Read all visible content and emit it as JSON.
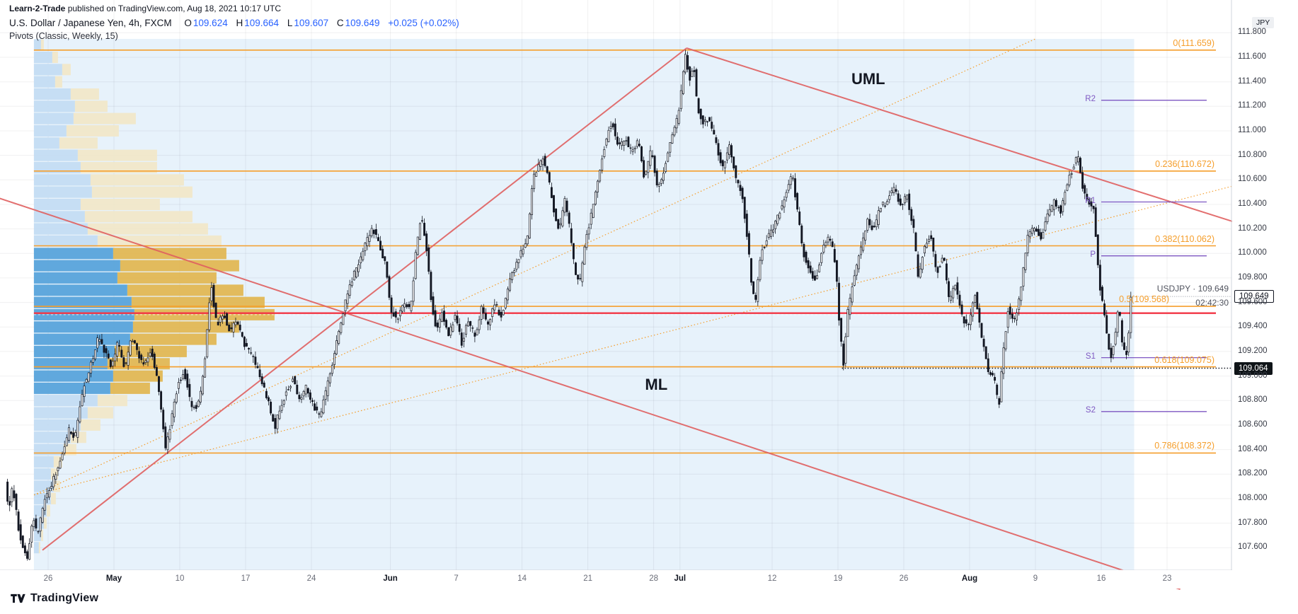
{
  "publish": {
    "author": "Learn-2-Trade",
    "rest": " published on TradingView.com, Aug 18, 2021 10:17 UTC"
  },
  "legend": {
    "symbol_title": "U.S. Dollar / Japanese Yen, 4h, FXCM",
    "ohlc": {
      "o_label": "O",
      "o": "109.624",
      "h_label": "H",
      "h": "109.664",
      "l_label": "L",
      "l": "109.607",
      "c_label": "C",
      "c": "109.649",
      "change": "+0.025 (+0.02%)"
    },
    "indicator": "Pivots (Classic, Weekly, 15)"
  },
  "price_label": {
    "symbol": "USDJPY",
    "separator": "·",
    "price": "109.649",
    "countdown": "02:42:30"
  },
  "axis": {
    "currency": "JPY",
    "black_tag": "109.064",
    "current_tag": "109.649",
    "price_ticks": [
      "111.800",
      "111.600",
      "111.400",
      "111.200",
      "111.000",
      "110.800",
      "110.600",
      "110.400",
      "110.200",
      "110.000",
      "109.800",
      "109.600",
      "109.400",
      "109.200",
      "109.000",
      "108.800",
      "108.600",
      "108.400",
      "108.200",
      "108.000",
      "107.800",
      "107.600"
    ],
    "time_ticks": [
      {
        "label": "26",
        "td": 0,
        "month": false
      },
      {
        "label": "May",
        "td": 5,
        "month": true
      },
      {
        "label": "10",
        "td": 10,
        "month": false
      },
      {
        "label": "17",
        "td": 15,
        "month": false
      },
      {
        "label": "24",
        "td": 20,
        "month": false
      },
      {
        "label": "Jun",
        "td": 26,
        "month": true
      },
      {
        "label": "7",
        "td": 31,
        "month": false
      },
      {
        "label": "14",
        "td": 36,
        "month": false
      },
      {
        "label": "21",
        "td": 41,
        "month": false
      },
      {
        "label": "28",
        "td": 46,
        "month": false
      },
      {
        "label": "Jul",
        "td": 48,
        "month": true
      },
      {
        "label": "12",
        "td": 55,
        "month": false
      },
      {
        "label": "19",
        "td": 60,
        "month": false
      },
      {
        "label": "26",
        "td": 65,
        "month": false
      },
      {
        "label": "Aug",
        "td": 70,
        "month": true
      },
      {
        "label": "9",
        "td": 75,
        "month": false
      },
      {
        "label": "16",
        "td": 80,
        "month": false
      },
      {
        "label": "23",
        "td": 85,
        "month": false
      }
    ]
  },
  "footer": {
    "brand": "TradingView"
  },
  "colors": {
    "up": "#ffffff",
    "down": "#131722",
    "wick": "#131722",
    "fib": "#F59E2B",
    "red_line": "#F23645",
    "pitchfork": "#E06060",
    "pivot": "#7E57C2",
    "profile_blue": "#C3DCF3",
    "profile_blue_va": "#55A2DA",
    "profile_tan": "#F2E7C8",
    "profile_tan_va": "#E2B64F",
    "range_bg": "rgba(144,198,237,0.22)",
    "grid": "rgba(42,46,57,0.07)",
    "legend_value": "#2962FF"
  },
  "chart_data": {
    "type": "candlestick",
    "symbol": "USDJPY",
    "title": "U.S. Dollar / Japanese Yen",
    "interval": "4h",
    "exchange": "FXCM",
    "current_price": 109.649,
    "ohlc_last": {
      "o": 109.624,
      "h": 109.664,
      "l": 109.607,
      "c": 109.649,
      "change": "+0.025 (+0.02%)"
    },
    "price_axis_range": [
      107.42,
      111.75
    ],
    "time_axis": "trading days from Apr 26 2021 (td 0) to Aug 23 2021 (td 85), weekends skipped",
    "t_start": -3.17,
    "t_end": 82.33,
    "range_highlight": {
      "td_start": -1.08,
      "td_end": 82.5
    },
    "fib_levels": [
      {
        "label": "0(111.659)",
        "price": 111.659,
        "shift_left": false
      },
      {
        "label": "0.236(110.672)",
        "price": 110.672,
        "shift_left": false
      },
      {
        "label": "0.382(110.062)",
        "price": 110.062,
        "shift_left": false
      },
      {
        "label": "0.5(109.568)",
        "price": 109.568,
        "shift_left": true
      },
      {
        "label": "0.618(109.075)",
        "price": 109.075,
        "shift_left": false
      },
      {
        "label": "0.786(108.372)",
        "price": 108.372,
        "shift_left": false
      }
    ],
    "pivots": [
      {
        "label": "R2",
        "price": 111.25
      },
      {
        "label": "R1",
        "price": 110.42
      },
      {
        "label": "P",
        "price": 109.98
      },
      {
        "label": "S1",
        "price": 109.15
      },
      {
        "label": "S2",
        "price": 108.71
      }
    ],
    "pivot_week_start_td": 80,
    "red_line_price": 109.513,
    "black_ray": {
      "price": 109.064,
      "td_start": 60.3
    },
    "poc_price": 109.5,
    "annotations": [
      {
        "text": "UML",
        "td": 62.3,
        "price": 111.42
      },
      {
        "text": "ML",
        "td": 46.2,
        "price": 108.93
      }
    ],
    "pitchfork_lines": [
      {
        "td1": -0.43,
        "p1": 107.58,
        "td2": 48.5,
        "p2": 111.675
      },
      {
        "td1": 48.5,
        "p1": 111.675,
        "td2": 90,
        "p2": 110.26
      },
      {
        "td1": -3.7,
        "p1": 110.45,
        "td2": 86,
        "p2": 107.26
      }
    ],
    "fan_lines": [
      {
        "td1": -1.07,
        "p1": 108.03,
        "td2": 75.0,
        "p2": 111.75
      },
      {
        "td1": -1.07,
        "p1": 108.03,
        "td2": 90.0,
        "p2": 110.55
      }
    ],
    "path_anchors": [
      [
        -3.17,
        108.12
      ],
      [
        -2.9,
        107.92
      ],
      [
        -2.6,
        108.1
      ],
      [
        -2.2,
        107.78
      ],
      [
        -1.9,
        107.62
      ],
      [
        -1.5,
        107.49
      ],
      [
        -1.1,
        107.85
      ],
      [
        -0.7,
        107.7
      ],
      [
        -0.3,
        107.95
      ],
      [
        0.2,
        108.08
      ],
      [
        0.7,
        108.22
      ],
      [
        1.2,
        108.38
      ],
      [
        1.7,
        108.58
      ],
      [
        2.1,
        108.48
      ],
      [
        2.7,
        108.88
      ],
      [
        3.3,
        109.08
      ],
      [
        3.9,
        109.32
      ],
      [
        4.3,
        109.22
      ],
      [
        4.9,
        109.08
      ],
      [
        5.4,
        109.28
      ],
      [
        5.9,
        109.05
      ],
      [
        6.4,
        109.32
      ],
      [
        6.9,
        109.18
      ],
      [
        7.4,
        109.08
      ],
      [
        7.9,
        109.22
      ],
      [
        8.3,
        109.02
      ],
      [
        8.7,
        108.68
      ],
      [
        9.0,
        108.42
      ],
      [
        9.4,
        108.62
      ],
      [
        9.9,
        108.92
      ],
      [
        10.4,
        109.05
      ],
      [
        10.9,
        108.78
      ],
      [
        11.4,
        108.72
      ],
      [
        11.9,
        109.02
      ],
      [
        12.3,
        109.58
      ],
      [
        12.5,
        109.72
      ],
      [
        12.9,
        109.4
      ],
      [
        13.4,
        109.52
      ],
      [
        13.9,
        109.36
      ],
      [
        14.4,
        109.46
      ],
      [
        14.9,
        109.28
      ],
      [
        15.4,
        109.2
      ],
      [
        15.9,
        109.08
      ],
      [
        16.4,
        108.92
      ],
      [
        16.9,
        108.75
      ],
      [
        17.3,
        108.58
      ],
      [
        17.7,
        108.74
      ],
      [
        18.2,
        108.88
      ],
      [
        18.7,
        108.98
      ],
      [
        19.2,
        108.78
      ],
      [
        19.7,
        108.92
      ],
      [
        20.2,
        108.76
      ],
      [
        20.7,
        108.66
      ],
      [
        21.2,
        108.88
      ],
      [
        21.7,
        109.12
      ],
      [
        22.2,
        109.38
      ],
      [
        22.7,
        109.62
      ],
      [
        23.2,
        109.8
      ],
      [
        23.7,
        109.92
      ],
      [
        24.2,
        110.08
      ],
      [
        24.7,
        110.22
      ],
      [
        25.2,
        110.08
      ],
      [
        25.7,
        109.92
      ],
      [
        26.1,
        109.55
      ],
      [
        26.6,
        109.45
      ],
      [
        27.1,
        109.62
      ],
      [
        27.6,
        109.52
      ],
      [
        28.0,
        110.0
      ],
      [
        28.4,
        110.3
      ],
      [
        28.8,
        110.08
      ],
      [
        29.2,
        109.58
      ],
      [
        29.6,
        109.38
      ],
      [
        30.0,
        109.52
      ],
      [
        30.5,
        109.32
      ],
      [
        31.0,
        109.5
      ],
      [
        31.5,
        109.26
      ],
      [
        32.0,
        109.46
      ],
      [
        32.5,
        109.32
      ],
      [
        33.0,
        109.56
      ],
      [
        33.5,
        109.4
      ],
      [
        34.0,
        109.6
      ],
      [
        34.5,
        109.48
      ],
      [
        35.0,
        109.72
      ],
      [
        35.5,
        109.88
      ],
      [
        36.0,
        110.02
      ],
      [
        36.5,
        110.12
      ],
      [
        36.9,
        110.6
      ],
      [
        37.3,
        110.7
      ],
      [
        37.7,
        110.78
      ],
      [
        38.1,
        110.6
      ],
      [
        38.5,
        110.35
      ],
      [
        38.9,
        110.18
      ],
      [
        39.3,
        110.45
      ],
      [
        39.7,
        110.2
      ],
      [
        40.1,
        109.85
      ],
      [
        40.5,
        109.78
      ],
      [
        40.9,
        110.1
      ],
      [
        41.4,
        110.35
      ],
      [
        41.9,
        110.62
      ],
      [
        42.4,
        110.9
      ],
      [
        42.9,
        111.08
      ],
      [
        43.4,
        110.85
      ],
      [
        43.9,
        110.95
      ],
      [
        44.4,
        110.82
      ],
      [
        44.9,
        110.92
      ],
      [
        45.4,
        110.6
      ],
      [
        45.9,
        110.85
      ],
      [
        46.4,
        110.52
      ],
      [
        46.9,
        110.68
      ],
      [
        47.4,
        110.95
      ],
      [
        47.9,
        111.1
      ],
      [
        48.2,
        111.35
      ],
      [
        48.5,
        111.64
      ],
      [
        48.8,
        111.42
      ],
      [
        49.1,
        111.55
      ],
      [
        49.4,
        111.2
      ],
      [
        49.8,
        111.05
      ],
      [
        50.3,
        111.1
      ],
      [
        50.8,
        110.92
      ],
      [
        51.3,
        110.68
      ],
      [
        51.8,
        110.88
      ],
      [
        52.3,
        110.62
      ],
      [
        52.8,
        110.48
      ],
      [
        53.2,
        110.12
      ],
      [
        53.5,
        109.78
      ],
      [
        53.8,
        109.6
      ],
      [
        54.2,
        110.0
      ],
      [
        54.7,
        110.12
      ],
      [
        55.2,
        110.22
      ],
      [
        55.7,
        110.35
      ],
      [
        56.2,
        110.52
      ],
      [
        56.6,
        110.64
      ],
      [
        57.0,
        110.35
      ],
      [
        57.4,
        110.02
      ],
      [
        57.9,
        109.85
      ],
      [
        58.4,
        109.78
      ],
      [
        58.9,
        110.02
      ],
      [
        59.4,
        110.15
      ],
      [
        59.9,
        109.92
      ],
      [
        60.2,
        109.4
      ],
      [
        60.5,
        109.1
      ],
      [
        60.8,
        109.5
      ],
      [
        61.3,
        109.82
      ],
      [
        61.8,
        110.02
      ],
      [
        62.3,
        110.28
      ],
      [
        62.8,
        110.18
      ],
      [
        63.3,
        110.38
      ],
      [
        63.8,
        110.42
      ],
      [
        64.3,
        110.55
      ],
      [
        64.8,
        110.38
      ],
      [
        65.3,
        110.48
      ],
      [
        65.8,
        110.22
      ],
      [
        66.2,
        109.78
      ],
      [
        66.6,
        110.05
      ],
      [
        67.1,
        110.15
      ],
      [
        67.6,
        109.85
      ],
      [
        68.1,
        109.98
      ],
      [
        68.5,
        109.62
      ],
      [
        69.0,
        109.75
      ],
      [
        69.5,
        109.48
      ],
      [
        70.0,
        109.4
      ],
      [
        70.5,
        109.68
      ],
      [
        71.0,
        109.3
      ],
      [
        71.5,
        109.05
      ],
      [
        72.0,
        108.95
      ],
      [
        72.3,
        108.75
      ],
      [
        72.6,
        109.15
      ],
      [
        73.0,
        109.55
      ],
      [
        73.5,
        109.45
      ],
      [
        74.0,
        109.72
      ],
      [
        74.5,
        110.15
      ],
      [
        75.0,
        110.22
      ],
      [
        75.5,
        110.12
      ],
      [
        76.0,
        110.3
      ],
      [
        76.5,
        110.42
      ],
      [
        77.0,
        110.35
      ],
      [
        77.5,
        110.58
      ],
      [
        78.0,
        110.72
      ],
      [
        78.3,
        110.8
      ],
      [
        78.7,
        110.52
      ],
      [
        79.1,
        110.42
      ],
      [
        79.5,
        110.38
      ],
      [
        79.9,
        109.78
      ],
      [
        80.2,
        109.58
      ],
      [
        80.5,
        109.35
      ],
      [
        80.8,
        109.15
      ],
      [
        81.1,
        109.32
      ],
      [
        81.4,
        109.58
      ],
      [
        81.7,
        109.25
      ],
      [
        82.0,
        109.18
      ],
      [
        82.2,
        109.4
      ],
      [
        82.33,
        109.65
      ]
    ],
    "volume_profile": {
      "value_area": [
        108.85,
        110.05
      ],
      "rows": [
        [
          111.7,
          10,
          4
        ],
        [
          111.6,
          26,
          8
        ],
        [
          111.5,
          40,
          12
        ],
        [
          111.4,
          30,
          10
        ],
        [
          111.3,
          52,
          40
        ],
        [
          111.2,
          58,
          46
        ],
        [
          111.1,
          56,
          88
        ],
        [
          111.0,
          46,
          74
        ],
        [
          110.9,
          36,
          54
        ],
        [
          110.8,
          62,
          112
        ],
        [
          110.7,
          66,
          108
        ],
        [
          110.6,
          80,
          132
        ],
        [
          110.5,
          82,
          142
        ],
        [
          110.4,
          66,
          112
        ],
        [
          110.3,
          72,
          152
        ],
        [
          110.2,
          76,
          170
        ],
        [
          110.1,
          90,
          175
        ],
        [
          110.0,
          112,
          160
        ],
        [
          109.9,
          122,
          168
        ],
        [
          109.8,
          118,
          140
        ],
        [
          109.7,
          132,
          164
        ],
        [
          109.6,
          138,
          188
        ],
        [
          109.5,
          142,
          198
        ],
        [
          109.4,
          140,
          150
        ],
        [
          109.3,
          136,
          122
        ],
        [
          109.2,
          114,
          102
        ],
        [
          109.1,
          104,
          88
        ],
        [
          109.0,
          112,
          70
        ],
        [
          108.9,
          108,
          56
        ],
        [
          108.8,
          90,
          42
        ],
        [
          108.7,
          76,
          36
        ],
        [
          108.6,
          66,
          28
        ],
        [
          108.5,
          52,
          22
        ],
        [
          108.4,
          42,
          18
        ],
        [
          108.3,
          28,
          12
        ],
        [
          108.2,
          24,
          10
        ],
        [
          108.1,
          28,
          9
        ],
        [
          108.0,
          24,
          7
        ],
        [
          107.9,
          18,
          5
        ],
        [
          107.8,
          14,
          4
        ],
        [
          107.7,
          10,
          3
        ],
        [
          107.6,
          7,
          2
        ]
      ]
    }
  }
}
